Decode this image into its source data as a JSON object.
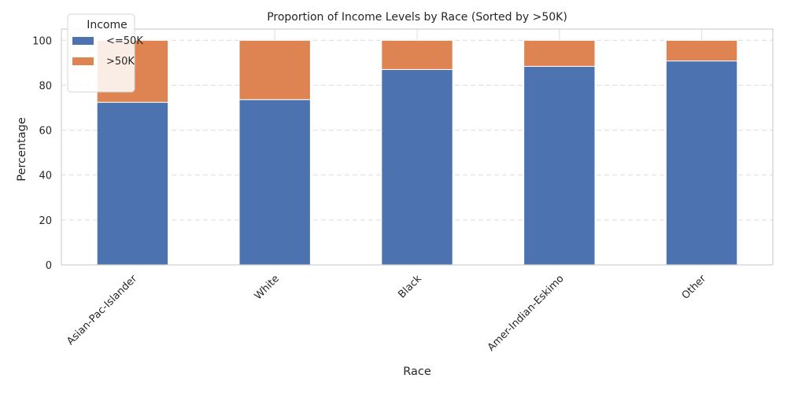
{
  "chart_data": {
    "type": "bar",
    "stacked": true,
    "title": "Proportion of Income Levels by Race (Sorted by >50K)",
    "xlabel": "Race",
    "ylabel": "Percentage",
    "categories": [
      "Asian-Pac-Islander",
      "White",
      "Black",
      "Amer-Indian-Eskimo",
      "Other"
    ],
    "series": [
      {
        "name": "<=50K",
        "values": [
          72.4,
          73.6,
          87.0,
          88.4,
          90.8
        ],
        "color": "#4c72b0"
      },
      {
        "name": ">50K",
        "values": [
          27.6,
          26.4,
          13.0,
          11.6,
          9.2
        ],
        "color": "#dd8452"
      }
    ],
    "ylim": [
      0,
      105
    ],
    "yticks": [
      0,
      20,
      40,
      60,
      80,
      100
    ],
    "grid": true,
    "legend": {
      "title": "Income",
      "position": "top-left"
    }
  }
}
